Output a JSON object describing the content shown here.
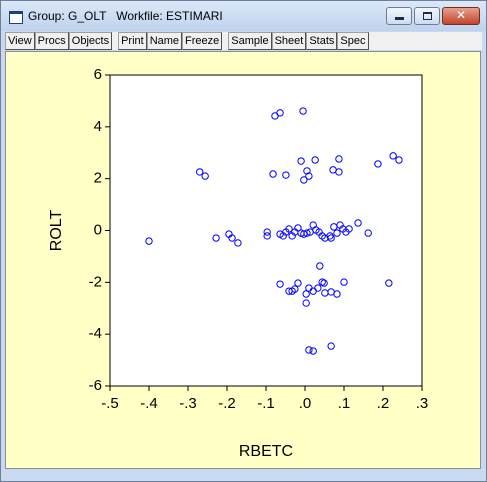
{
  "window": {
    "title": "Group: G_OLT   Workfile: ESTIMARI"
  },
  "toolbar": {
    "groups": [
      [
        "View",
        "Procs",
        "Objects"
      ],
      [
        "Print",
        "Name",
        "Freeze"
      ],
      [
        "Sample",
        "Sheet",
        "Stats",
        "Spec"
      ]
    ]
  },
  "chart_data": {
    "type": "scatter",
    "xlabel": "RBETC",
    "ylabel": "ROLT",
    "color": "#0000ff",
    "xlim": [
      -0.5,
      0.3
    ],
    "ylim": [
      -6,
      6
    ],
    "xticks": [
      {
        "value": -0.5,
        "label": "-.5"
      },
      {
        "value": -0.4,
        "label": "-.4"
      },
      {
        "value": -0.3,
        "label": "-.3"
      },
      {
        "value": -0.2,
        "label": "-.2"
      },
      {
        "value": -0.1,
        "label": "-.1"
      },
      {
        "value": 0,
        "label": ".0"
      },
      {
        "value": 0.1,
        "label": ".1"
      },
      {
        "value": 0.2,
        "label": ".2"
      },
      {
        "value": 0.3,
        "label": ".3"
      }
    ],
    "yticks": [
      -6,
      -4,
      -2,
      0,
      2,
      4,
      6
    ],
    "x": [
      -0.077,
      -0.064,
      -0.005,
      -0.27,
      -0.256,
      -0.082,
      -0.049,
      -0.01,
      -0.003,
      0.005,
      0.01,
      0.026,
      0.072,
      0.087,
      0.087,
      0.187,
      0.226,
      0.241,
      -0.4,
      -0.228,
      -0.195,
      -0.187,
      -0.172,
      -0.097,
      -0.097,
      -0.064,
      -0.049,
      -0.033,
      -0.018,
      -0.01,
      -0.003,
      0.013,
      0.021,
      0.028,
      0.036,
      0.044,
      0.051,
      0.064,
      0.074,
      0.082,
      0.09,
      0.097,
      0.105,
      0.113,
      0.136,
      0.162,
      -0.056,
      -0.041,
      -0.026,
      0.005,
      0.067,
      -0.064,
      -0.041,
      -0.033,
      -0.026,
      -0.018,
      0.003,
      0.01,
      0.021,
      0.033,
      0.038,
      0.044,
      0.049,
      0.051,
      0.067,
      0.082,
      0.1,
      0.215,
      0.003,
      0.01,
      0.021,
      0.067
    ],
    "values": [
      4.42,
      4.54,
      4.61,
      2.26,
      2.1,
      2.18,
      2.14,
      2.68,
      1.95,
      2.3,
      2.1,
      2.72,
      2.34,
      2.26,
      2.76,
      2.57,
      2.88,
      2.72,
      -0.41,
      -0.29,
      -0.14,
      -0.29,
      -0.48,
      -0.06,
      -0.21,
      -0.14,
      -0.06,
      -0.21,
      0.1,
      -0.1,
      -0.14,
      -0.06,
      0.21,
      0.02,
      -0.06,
      -0.21,
      -0.29,
      -0.21,
      0.14,
      -0.1,
      0.21,
      0.06,
      -0.06,
      0.06,
      0.29,
      -0.1,
      -0.21,
      0.06,
      -0.06,
      -0.1,
      -0.29,
      -2.07,
      -2.34,
      -2.34,
      -2.26,
      -2.03,
      -2.45,
      -2.22,
      -2.34,
      -2.22,
      -1.37,
      -1.99,
      -2.03,
      -2.41,
      -2.37,
      -2.45,
      -1.99,
      -2.03,
      -2.8,
      -4.61,
      -4.65,
      -4.46
    ]
  }
}
